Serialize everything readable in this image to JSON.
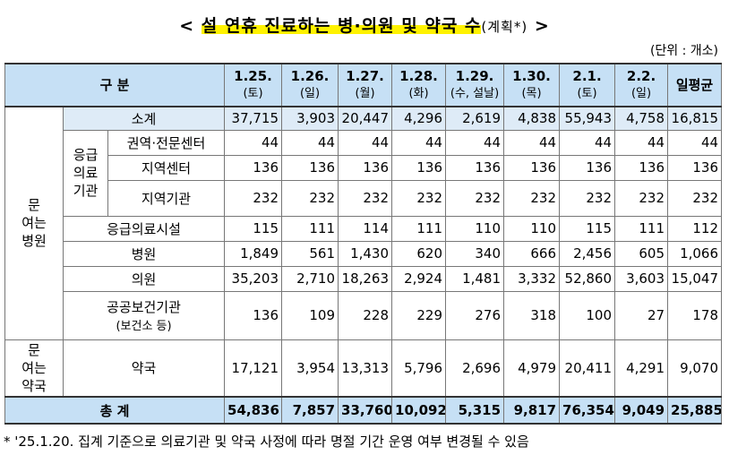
{
  "title": {
    "open": "<",
    "main": "설 연휴 진료하는 병·의원 및 약국 수",
    "note": "(계획*)",
    "close": ">"
  },
  "unit": "(단위 : 개소)",
  "table": {
    "corner": "구 분",
    "columns": [
      {
        "date": "1.25.",
        "day": "(토)"
      },
      {
        "date": "1.26.",
        "day": "(일)"
      },
      {
        "date": "1.27.",
        "day": "(월)"
      },
      {
        "date": "1.28.",
        "day": "(화)"
      },
      {
        "date": "1.29.",
        "day": "(수, 설날)"
      },
      {
        "date": "1.30.",
        "day": "(목)"
      },
      {
        "date": "2.1.",
        "day": "(토)"
      },
      {
        "date": "2.2.",
        "day": "(일)"
      },
      {
        "date": "일평균"
      }
    ],
    "groups": {
      "hospital": [
        "문",
        "여는",
        "병원"
      ],
      "emergency": [
        "응급",
        "의료",
        "기관"
      ],
      "pharmacy": [
        "문",
        "여는",
        "약국"
      ]
    },
    "rows": [
      {
        "label": "소계",
        "values": [
          "37,715",
          "3,903",
          "20,447",
          "4,296",
          "2,619",
          "4,838",
          "55,943",
          "4,758",
          "16,815"
        ]
      },
      {
        "label": "권역·전문센터",
        "values": [
          "44",
          "44",
          "44",
          "44",
          "44",
          "44",
          "44",
          "44",
          "44"
        ]
      },
      {
        "label": "지역센터",
        "values": [
          "136",
          "136",
          "136",
          "136",
          "136",
          "136",
          "136",
          "136",
          "136"
        ]
      },
      {
        "label": "지역기관",
        "values": [
          "232",
          "232",
          "232",
          "232",
          "232",
          "232",
          "232",
          "232",
          "232"
        ]
      },
      {
        "label": "응급의료시설",
        "values": [
          "115",
          "111",
          "114",
          "111",
          "110",
          "110",
          "115",
          "111",
          "112"
        ]
      },
      {
        "label": "병원",
        "values": [
          "1,849",
          "561",
          "1,430",
          "620",
          "340",
          "666",
          "2,456",
          "605",
          "1,066"
        ]
      },
      {
        "label": "의원",
        "values": [
          "35,203",
          "2,710",
          "18,263",
          "2,924",
          "1,481",
          "3,332",
          "52,860",
          "3,603",
          "15,047"
        ]
      },
      {
        "label": "공공보건기관",
        "sublabel": "(보건소 등)",
        "values": [
          "136",
          "109",
          "228",
          "229",
          "276",
          "318",
          "100",
          "27",
          "178"
        ]
      },
      {
        "label": "약국",
        "values": [
          "17,121",
          "3,954",
          "13,313",
          "5,796",
          "2,696",
          "4,979",
          "20,411",
          "4,291",
          "9,070"
        ]
      },
      {
        "label": "총 계",
        "values": [
          "54,836",
          "7,857",
          "33,760",
          "10,092",
          "5,315",
          "9,817",
          "76,354",
          "9,049",
          "25,885"
        ]
      }
    ]
  },
  "footnote": "* '25.1.20. 집계 기준으로 의료기관 및 약국 사정에 따라 명절 기간 운영 여부 변경될 수 있음"
}
